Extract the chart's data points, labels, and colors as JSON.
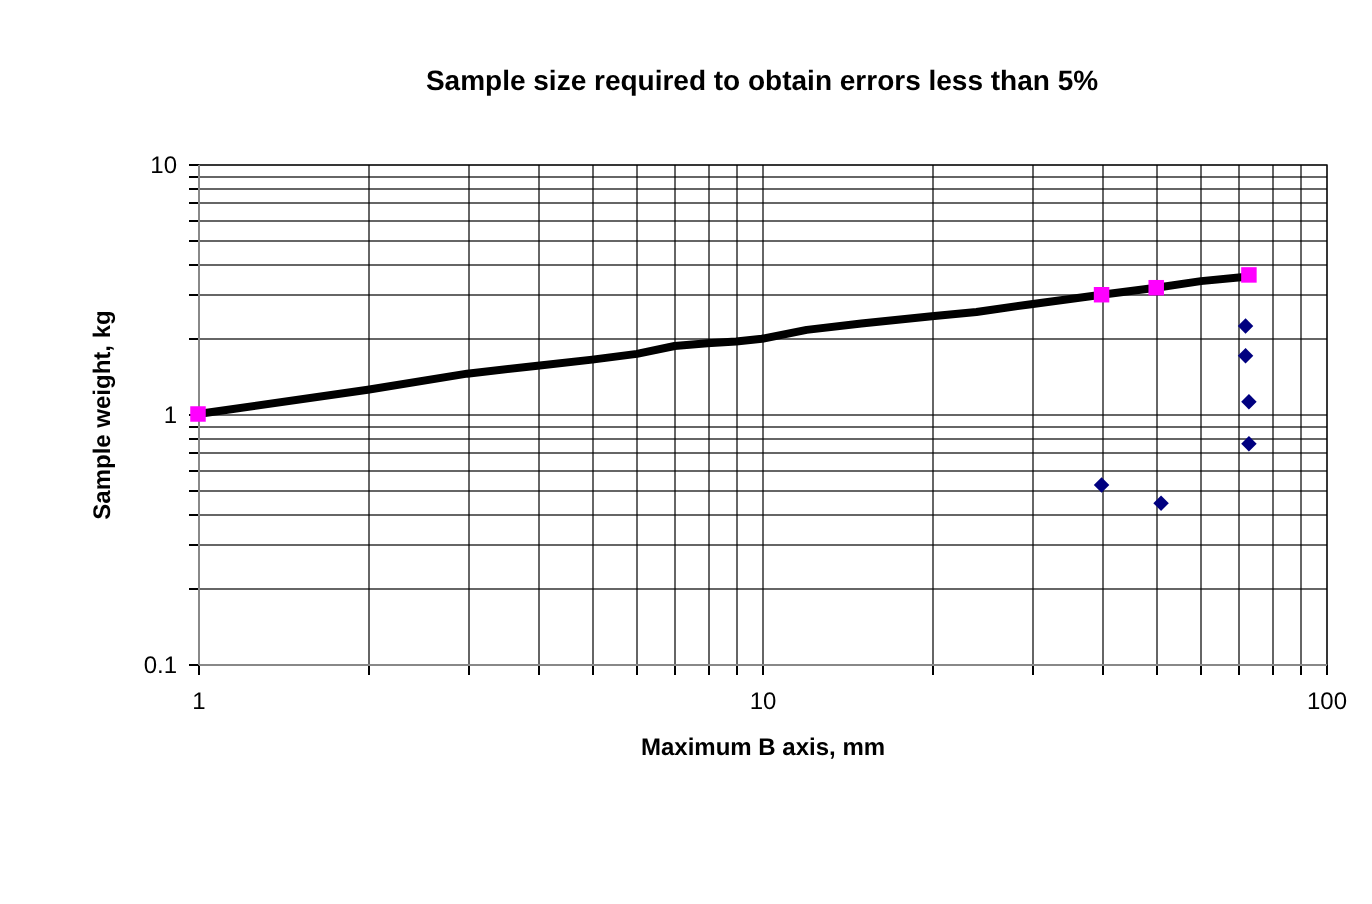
{
  "chart_data": {
    "type": "line",
    "title": "Sample size required to obtain errors less than 5%",
    "xlabel": "Maximum B axis, mm",
    "ylabel": "Sample weight, kg",
    "log": "xy",
    "grid": true,
    "xlim": [
      1,
      100
    ],
    "ylim": [
      0.1,
      10
    ],
    "xticks": [
      1,
      {
        "value": 2,
        "label": null
      },
      {
        "value": 3,
        "label": null
      },
      {
        "value": 4,
        "label": null
      },
      {
        "value": 5,
        "label": null
      },
      {
        "value": 6,
        "label": null
      },
      {
        "value": 7,
        "label": null
      },
      {
        "value": 8,
        "label": null
      },
      {
        "value": 9,
        "label": null
      },
      10,
      {
        "value": 20,
        "label": null
      },
      {
        "value": 30,
        "label": null
      },
      {
        "value": 40,
        "label": null
      },
      {
        "value": 50,
        "label": null
      },
      {
        "value": 60,
        "label": null
      },
      {
        "value": 70,
        "label": null
      },
      {
        "value": 80,
        "label": null
      },
      {
        "value": 90,
        "label": null
      },
      100
    ],
    "yticks": [
      0.1,
      {
        "value": 0.2,
        "label": null
      },
      {
        "value": 0.3,
        "label": null
      },
      {
        "value": 0.4,
        "label": null
      },
      {
        "value": 0.5,
        "label": null
      },
      {
        "value": 0.6,
        "label": null
      },
      {
        "value": 0.7,
        "label": null
      },
      {
        "value": 0.8,
        "label": null
      },
      {
        "value": 0.9,
        "label": null
      },
      1,
      {
        "value": 2,
        "label": null
      },
      {
        "value": 3,
        "label": null
      },
      {
        "value": 4,
        "label": null
      },
      {
        "value": 5,
        "label": null
      },
      {
        "value": 6,
        "label": null
      },
      {
        "value": 7,
        "label": null
      },
      {
        "value": 8,
        "label": null
      },
      {
        "value": 9,
        "label": null
      },
      10
    ],
    "series": [
      {
        "color": "#000000",
        "marker": "none",
        "line_style": "solid",
        "x": [
          1,
          2,
          3,
          4,
          5,
          6,
          7,
          8,
          9,
          10,
          12,
          15,
          20,
          24,
          30,
          40,
          50,
          60,
          73
        ],
        "values": [
          1,
          1.25,
          1.45,
          1.56,
          1.65,
          1.74,
          1.87,
          1.92,
          1.95,
          2.0,
          2.17,
          2.3,
          2.46,
          2.56,
          2.75,
          3.0,
          3.2,
          3.4,
          3.55
        ]
      },
      {
        "type": "scatter",
        "color": "#ff00ff",
        "marker": "square",
        "x": [
          1,
          40,
          50,
          73
        ],
        "values": [
          1,
          3.0,
          3.2,
          3.6
        ]
      },
      {
        "type": "scatter",
        "color": "#000080",
        "marker": "diamond",
        "x": [
          40,
          51,
          72,
          72,
          73,
          73
        ],
        "values": [
          0.52,
          0.44,
          2.25,
          1.71,
          1.12,
          0.76
        ]
      }
    ]
  }
}
